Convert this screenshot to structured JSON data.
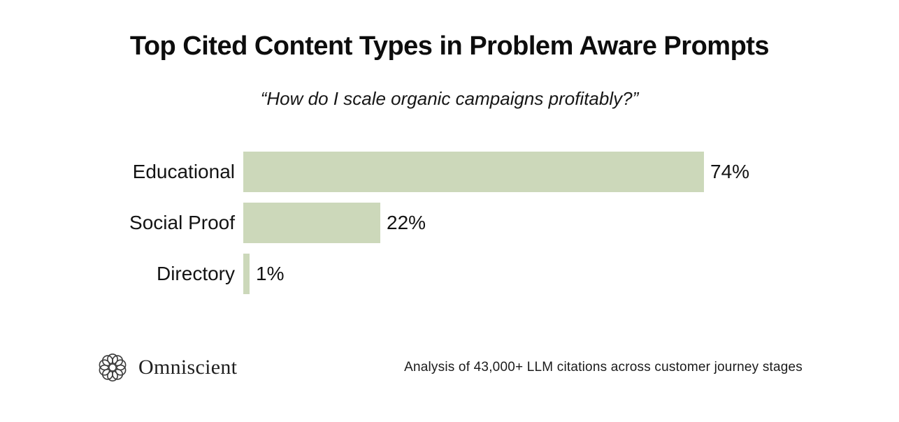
{
  "page": {
    "title": "Top Cited Content Types in Problem Aware Prompts",
    "subtitle": "“How do I scale organic campaigns profitably?”"
  },
  "chart_data": {
    "type": "bar",
    "orientation": "horizontal",
    "categories": [
      "Educational",
      "Social Proof",
      "Directory"
    ],
    "values": [
      74,
      22,
      1
    ],
    "value_labels": [
      "74%",
      "22%",
      "1%"
    ],
    "title": "Top Cited Content Types in Problem Aware Prompts",
    "subtitle": "“How do I scale organic campaigns profitably?”",
    "xlabel": "",
    "ylabel": "",
    "xlim": [
      0,
      74
    ],
    "grid": false,
    "legend": false,
    "bar_color": "#ccd8ba"
  },
  "footer": {
    "brand": "Omniscient",
    "logo_icon": "rosette-knot-icon",
    "note": "Analysis of 43,000+ LLM citations across customer journey stages"
  },
  "colors": {
    "background": "#ffffff",
    "bar": "#ccd8ba",
    "text": "#111111"
  }
}
